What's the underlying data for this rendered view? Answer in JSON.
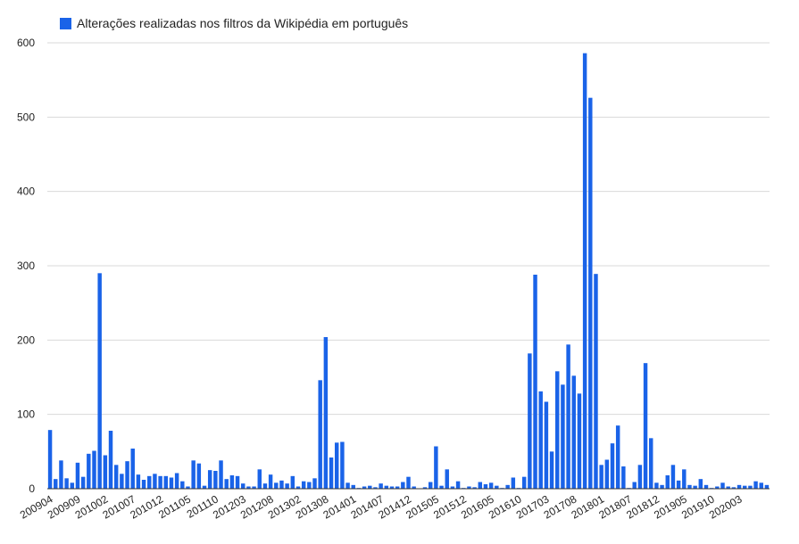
{
  "colors": {
    "bar": "#1a63e8",
    "grid": "#d9d9d9",
    "baseline": "#333333",
    "text": "#222222"
  },
  "chart_data": {
    "type": "bar",
    "legend": {
      "label": "Alterações realizadas nos filtros da Wikipédia em português",
      "position": "top-left"
    },
    "ylim": [
      0,
      600
    ],
    "yticks": [
      "0",
      "100",
      "200",
      "300",
      "400",
      "500",
      "600"
    ],
    "grid": true,
    "xtick_labels": [
      "200904",
      "200909",
      "201002",
      "201007",
      "201012",
      "201105",
      "201110",
      "201203",
      "201208",
      "201302",
      "201308",
      "201401",
      "201407",
      "201412",
      "201505",
      "201512",
      "201605",
      "201610",
      "201703",
      "201708",
      "201801",
      "201807",
      "201812",
      "201905",
      "201910",
      "202003"
    ],
    "values": [
      79,
      13,
      38,
      14,
      8,
      35,
      16,
      47,
      51,
      290,
      45,
      78,
      32,
      20,
      37,
      54,
      19,
      12,
      17,
      20,
      17,
      17,
      15,
      21,
      10,
      3,
      38,
      34,
      4,
      25,
      24,
      38,
      13,
      18,
      17,
      7,
      3,
      3,
      26,
      7,
      19,
      8,
      11,
      7,
      17,
      3,
      10,
      9,
      14,
      146,
      204,
      42,
      62,
      63,
      8,
      5,
      1,
      3,
      4,
      2,
      7,
      4,
      3,
      3,
      9,
      16,
      3,
      0,
      2,
      9,
      57,
      4,
      26,
      3,
      10,
      1,
      3,
      2,
      9,
      6,
      8,
      4,
      1,
      5,
      15,
      1,
      16,
      182,
      288,
      131,
      117,
      50,
      158,
      140,
      194,
      152,
      128,
      586,
      526,
      289,
      32,
      39,
      61,
      85,
      30,
      1,
      9,
      32,
      169,
      68,
      8,
      5,
      18,
      32,
      11,
      26,
      5,
      4,
      13,
      5,
      1,
      3,
      8,
      3,
      2,
      5,
      4,
      4,
      10,
      8,
      5
    ]
  }
}
